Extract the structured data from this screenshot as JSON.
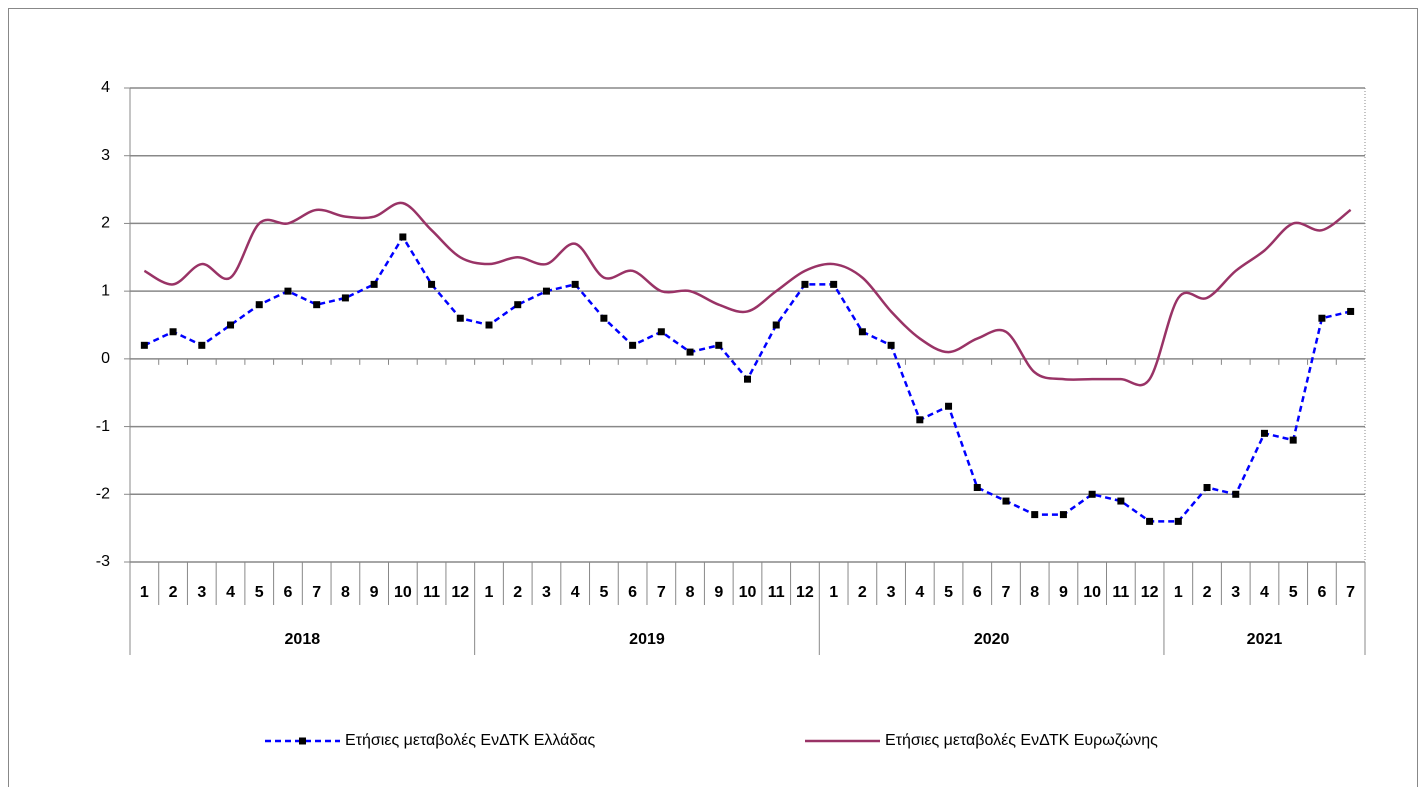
{
  "chart_data": {
    "type": "line",
    "groups": [
      {
        "name": "2018",
        "categories": [
          "1",
          "2",
          "3",
          "4",
          "5",
          "6",
          "7",
          "8",
          "9",
          "10",
          "11",
          "12"
        ]
      },
      {
        "name": "2019",
        "categories": [
          "1",
          "2",
          "3",
          "4",
          "5",
          "6",
          "7",
          "8",
          "9",
          "10",
          "11",
          "12"
        ]
      },
      {
        "name": "2020",
        "categories": [
          "1",
          "2",
          "3",
          "4",
          "5",
          "6",
          "7",
          "8",
          "9",
          "10",
          "11",
          "12"
        ]
      },
      {
        "name": "2021",
        "categories": [
          "1",
          "2",
          "3",
          "4",
          "5",
          "6",
          "7"
        ]
      }
    ],
    "series": [
      {
        "name": "Ετήσιες μεταβολές ΕνΔΤΚ Ελλάδας",
        "color": "#0000ff",
        "style": "dashed",
        "marker": "square",
        "marker_color": "#000000",
        "values": [
          0.2,
          0.4,
          0.2,
          0.5,
          0.8,
          1.0,
          0.8,
          0.9,
          1.1,
          1.8,
          1.1,
          0.6,
          0.5,
          0.8,
          1.0,
          1.1,
          0.6,
          0.2,
          0.4,
          0.1,
          0.2,
          -0.3,
          0.5,
          1.1,
          1.1,
          0.4,
          0.2,
          -0.9,
          -0.7,
          -1.9,
          -2.1,
          -2.3,
          -2.3,
          -2.0,
          -2.1,
          -2.4,
          -2.4,
          -1.9,
          -2.0,
          -1.1,
          -1.2,
          0.6,
          0.7
        ]
      },
      {
        "name": "Ετήσιες μεταβολές ΕνΔΤΚ Ευρωζώνης",
        "color": "#993366",
        "style": "smooth",
        "values": [
          1.3,
          1.1,
          1.4,
          1.2,
          2.0,
          2.0,
          2.2,
          2.1,
          2.1,
          2.3,
          1.9,
          1.5,
          1.4,
          1.5,
          1.4,
          1.7,
          1.2,
          1.3,
          1.0,
          1.0,
          0.8,
          0.7,
          1.0,
          1.3,
          1.4,
          1.2,
          0.7,
          0.3,
          0.1,
          0.3,
          0.4,
          -0.2,
          -0.3,
          -0.3,
          -0.3,
          -0.3,
          0.9,
          0.9,
          1.3,
          1.6,
          2.0,
          1.9,
          2.2
        ]
      }
    ],
    "ylim": [
      -3,
      4
    ],
    "yticks": [
      -3,
      -2,
      -1,
      0,
      1,
      2,
      3,
      4
    ],
    "grid": true,
    "legend": "bottom"
  }
}
